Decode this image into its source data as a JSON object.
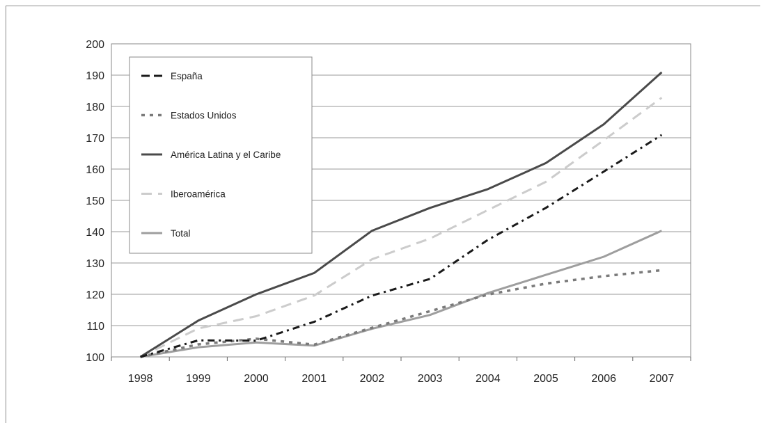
{
  "chart_data": {
    "type": "line",
    "title": "",
    "xlabel": "",
    "ylabel": "",
    "categories": [
      "1998",
      "1999",
      "2000",
      "2001",
      "2002",
      "2003",
      "2004",
      "2005",
      "2006",
      "2007"
    ],
    "ylim": [
      100,
      200
    ],
    "yticks": [
      100,
      110,
      120,
      130,
      140,
      150,
      160,
      170,
      180,
      190,
      200
    ],
    "grid": "horizontal",
    "legend_position": "top-left",
    "series": [
      {
        "name": "España",
        "color": "#1a1a1a",
        "style": "dashdot",
        "values": [
          100,
          105.3,
          105.2,
          111.2,
          119.6,
          124.9,
          137.4,
          147.6,
          159.2,
          170.9
        ]
      },
      {
        "name": "Estados Unidos",
        "color": "#7a7a7a",
        "style": "dotted",
        "values": [
          100,
          104.0,
          105.8,
          103.9,
          109.3,
          114.6,
          119.9,
          123.4,
          125.8,
          127.7
        ]
      },
      {
        "name": "América Latina y el Caribe",
        "color": "#4a4a4a",
        "style": "solid",
        "values": [
          100,
          111.6,
          120.0,
          126.8,
          140.3,
          147.6,
          153.6,
          161.9,
          174.3,
          190.9
        ]
      },
      {
        "name": "Iberoamérica",
        "color": "#cccccc",
        "style": "dashed",
        "values": [
          100,
          109.1,
          113.0,
          119.6,
          131.2,
          137.8,
          146.9,
          155.9,
          169.2,
          182.8
        ]
      },
      {
        "name": "Total",
        "color": "#9e9e9e",
        "style": "solid",
        "values": [
          100,
          103.1,
          104.6,
          103.6,
          109.0,
          113.4,
          120.4,
          126.2,
          132.0,
          140.3
        ]
      }
    ]
  }
}
